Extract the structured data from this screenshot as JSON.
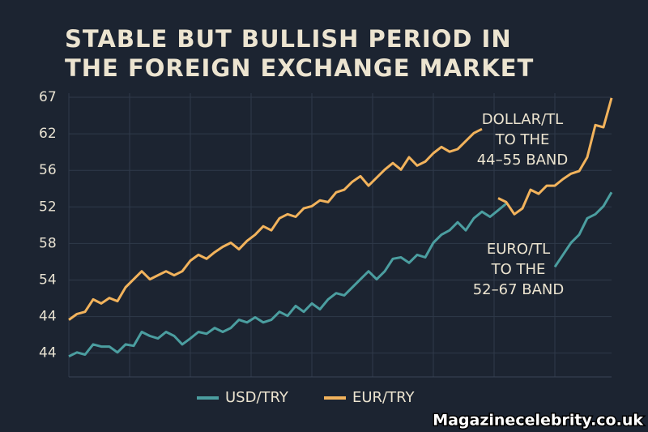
{
  "chart_data": {
    "type": "line",
    "title": [
      "STABLE BUT BULLISH PERIOD IN",
      "THE FOREIGN EXCHANGE MARKET"
    ],
    "ylim": [
      -0.65,
      7
    ],
    "yticks": [
      {
        "value": 7,
        "label": "67"
      },
      {
        "value": 6,
        "label": "62"
      },
      {
        "value": 5,
        "label": "56"
      },
      {
        "value": 4,
        "label": "52"
      },
      {
        "value": 3,
        "label": "58"
      },
      {
        "value": 2,
        "label": "54"
      },
      {
        "value": 1,
        "label": "44"
      },
      {
        "value": 0,
        "label": "44"
      }
    ],
    "grid": true,
    "series": [
      {
        "name": "USD/TRY",
        "color": "#4b9ea0",
        "values": [
          -0.09,
          0.02,
          -0.04,
          0.24,
          0.18,
          0.18,
          0.02,
          0.24,
          0.2,
          0.58,
          0.47,
          0.4,
          0.58,
          0.47,
          0.24,
          0.4,
          0.58,
          0.53,
          0.69,
          0.58,
          0.69,
          0.91,
          0.84,
          0.98,
          0.84,
          0.91,
          1.13,
          1.02,
          1.29,
          1.13,
          1.36,
          1.2,
          1.47,
          1.64,
          1.58,
          1.8,
          2.02,
          2.24,
          2.02,
          2.24,
          2.58,
          2.62,
          2.47,
          2.69,
          2.62,
          3.02,
          3.24,
          3.36,
          3.58,
          3.36,
          3.69,
          3.87,
          3.73,
          3.91,
          4.09,
          null,
          null,
          null,
          null,
          null,
          2.36,
          2.69,
          3.02,
          3.24,
          3.69,
          3.8,
          4.02,
          4.4
        ]
      },
      {
        "name": "EUR/TRY",
        "color": "#f2b35c",
        "values": [
          0.91,
          1.07,
          1.13,
          1.47,
          1.36,
          1.51,
          1.42,
          1.8,
          2.02,
          2.24,
          2.02,
          2.13,
          2.24,
          2.13,
          2.24,
          2.53,
          2.69,
          2.58,
          2.76,
          2.91,
          3.02,
          2.84,
          3.07,
          3.24,
          3.47,
          3.36,
          3.69,
          3.8,
          3.73,
          3.96,
          4.02,
          4.18,
          4.13,
          4.4,
          4.47,
          4.69,
          4.84,
          4.58,
          4.8,
          5.02,
          5.2,
          5.02,
          5.36,
          5.13,
          5.24,
          5.47,
          5.64,
          5.51,
          5.58,
          5.8,
          6.02,
          6.13,
          null,
          4.24,
          4.13,
          3.8,
          3.96,
          4.47,
          4.36,
          4.58,
          4.58,
          4.76,
          4.91,
          4.98,
          5.36,
          6.24,
          6.18,
          6.98
        ]
      }
    ],
    "annotations": [
      {
        "lines": [
          "DOLLAR/TL",
          "TO THE",
          "44–55 BAND"
        ]
      },
      {
        "lines": [
          "EURO/TL",
          "TO THE",
          "52–67 BAND"
        ]
      }
    ],
    "watermark": "Magazinecelebrity.co.uk"
  }
}
